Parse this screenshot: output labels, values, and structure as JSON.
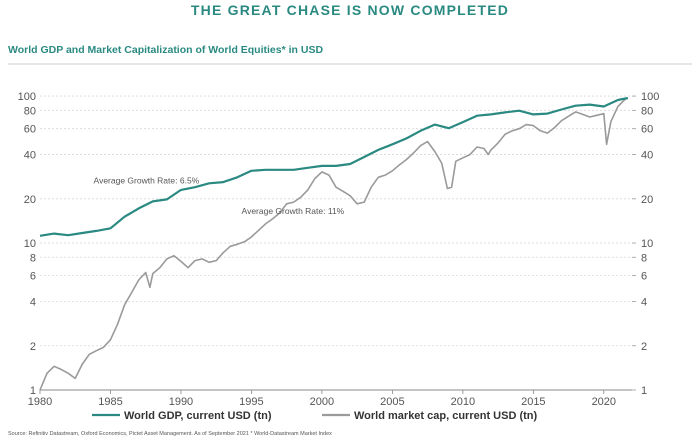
{
  "page": {
    "headline": "THE GREAT CHASE IS NOW COMPLETED",
    "source": "Source: Refinitiv Datastream, Oxford Economics, Pictet Asset Management. As of September 2021 * World-Datastream Market Index"
  },
  "chart_data": {
    "type": "line",
    "title": "World GDP and Market Capitalization of World Equities* in USD",
    "xlabel": "",
    "ylabel": "",
    "y_scale": "log",
    "xlim": [
      1980,
      2022
    ],
    "ylim": [
      1,
      110
    ],
    "x_ticks": [
      1980,
      1985,
      1990,
      1995,
      2000,
      2005,
      2010,
      2015,
      2020
    ],
    "y_ticks": [
      1,
      2,
      4,
      6,
      8,
      10,
      20,
      40,
      60,
      80,
      100
    ],
    "grid": true,
    "legend_position": "bottom",
    "colors": {
      "gdp": "#2a8a82",
      "mcap": "#9a9a9a",
      "accent": "#2a8a82"
    },
    "annotations": [
      {
        "text": "Average Growth Rate: 6.5%",
        "x": 1983.8,
        "y": 25.5
      },
      {
        "text": "Average Growth Rate: 11%",
        "x": 1994.3,
        "y": 15.8
      }
    ],
    "series": [
      {
        "name": "World GDP, current USD (tn)",
        "x": [
          1980,
          1981,
          1982,
          1983,
          1984,
          1985,
          1986,
          1987,
          1988,
          1989,
          1990,
          1991,
          1992,
          1993,
          1994,
          1995,
          1996,
          1997,
          1998,
          1999,
          2000,
          2001,
          2002,
          2003,
          2004,
          2005,
          2006,
          2007,
          2008,
          2009,
          2010,
          2011,
          2012,
          2013,
          2014,
          2015,
          2016,
          2017,
          2018,
          2019,
          2020,
          2021,
          2021.7
        ],
        "values": [
          11.2,
          11.6,
          11.3,
          11.7,
          12.1,
          12.6,
          15.1,
          17.2,
          19.2,
          19.8,
          23.0,
          24.0,
          25.5,
          26.0,
          28.0,
          31.0,
          31.5,
          31.5,
          31.5,
          32.5,
          33.5,
          33.5,
          34.5,
          38.5,
          43.0,
          47.0,
          51.5,
          58.0,
          64.0,
          60.5,
          66.5,
          73.5,
          75.0,
          77.5,
          79.5,
          75.0,
          76.0,
          81.0,
          86.0,
          87.5,
          85.0,
          94.0,
          97.0
        ]
      },
      {
        "name": "World market cap, current USD (tn)",
        "x": [
          1980,
          1980.5,
          1981,
          1981.5,
          1982,
          1982.5,
          1983,
          1983.5,
          1984,
          1984.5,
          1985,
          1985.5,
          1986,
          1986.5,
          1987,
          1987.5,
          1987.8,
          1988,
          1988.5,
          1989,
          1989.5,
          1990,
          1990.5,
          1991,
          1991.5,
          1992,
          1992.5,
          1993,
          1993.5,
          1994,
          1994.5,
          1995,
          1995.5,
          1996,
          1996.5,
          1997,
          1997.5,
          1998,
          1998.5,
          1999,
          1999.5,
          2000,
          2000.5,
          2001,
          2001.5,
          2002,
          2002.5,
          2003,
          2003.5,
          2004,
          2004.5,
          2005,
          2005.5,
          2006,
          2006.5,
          2007,
          2007.5,
          2008,
          2008.5,
          2008.9,
          2009.2,
          2009.5,
          2010,
          2010.5,
          2011,
          2011.5,
          2011.8,
          2012,
          2012.5,
          2013,
          2013.5,
          2014,
          2014.5,
          2015,
          2015.5,
          2016,
          2016.5,
          2017,
          2017.5,
          2018,
          2018.5,
          2019,
          2019.5,
          2020,
          2020.2,
          2020.5,
          2021,
          2021.5,
          2021.7
        ],
        "values": [
          1.0,
          1.3,
          1.45,
          1.38,
          1.3,
          1.2,
          1.5,
          1.75,
          1.85,
          1.95,
          2.2,
          2.8,
          3.8,
          4.6,
          5.6,
          6.3,
          5.0,
          6.2,
          6.8,
          7.8,
          8.2,
          7.5,
          6.8,
          7.6,
          7.8,
          7.4,
          7.6,
          8.6,
          9.5,
          9.8,
          10.2,
          11.0,
          12.2,
          13.5,
          14.6,
          16.0,
          18.5,
          19.0,
          20.5,
          23.0,
          27.5,
          30.5,
          29.0,
          24.0,
          22.5,
          21.0,
          18.5,
          19.0,
          24.0,
          28.0,
          29.0,
          31.0,
          34.0,
          37.0,
          41.0,
          46.0,
          49.0,
          42.0,
          35.0,
          23.5,
          24.0,
          36.0,
          38.0,
          40.0,
          45.0,
          44.0,
          40.0,
          43.0,
          48.0,
          55.0,
          58.0,
          60.0,
          64.0,
          63.0,
          58.0,
          56.0,
          61.0,
          68.0,
          73.0,
          78.0,
          75.0,
          72.0,
          74.0,
          76.0,
          47.0,
          67.0,
          85.0,
          95.0,
          97.0
        ]
      }
    ]
  }
}
